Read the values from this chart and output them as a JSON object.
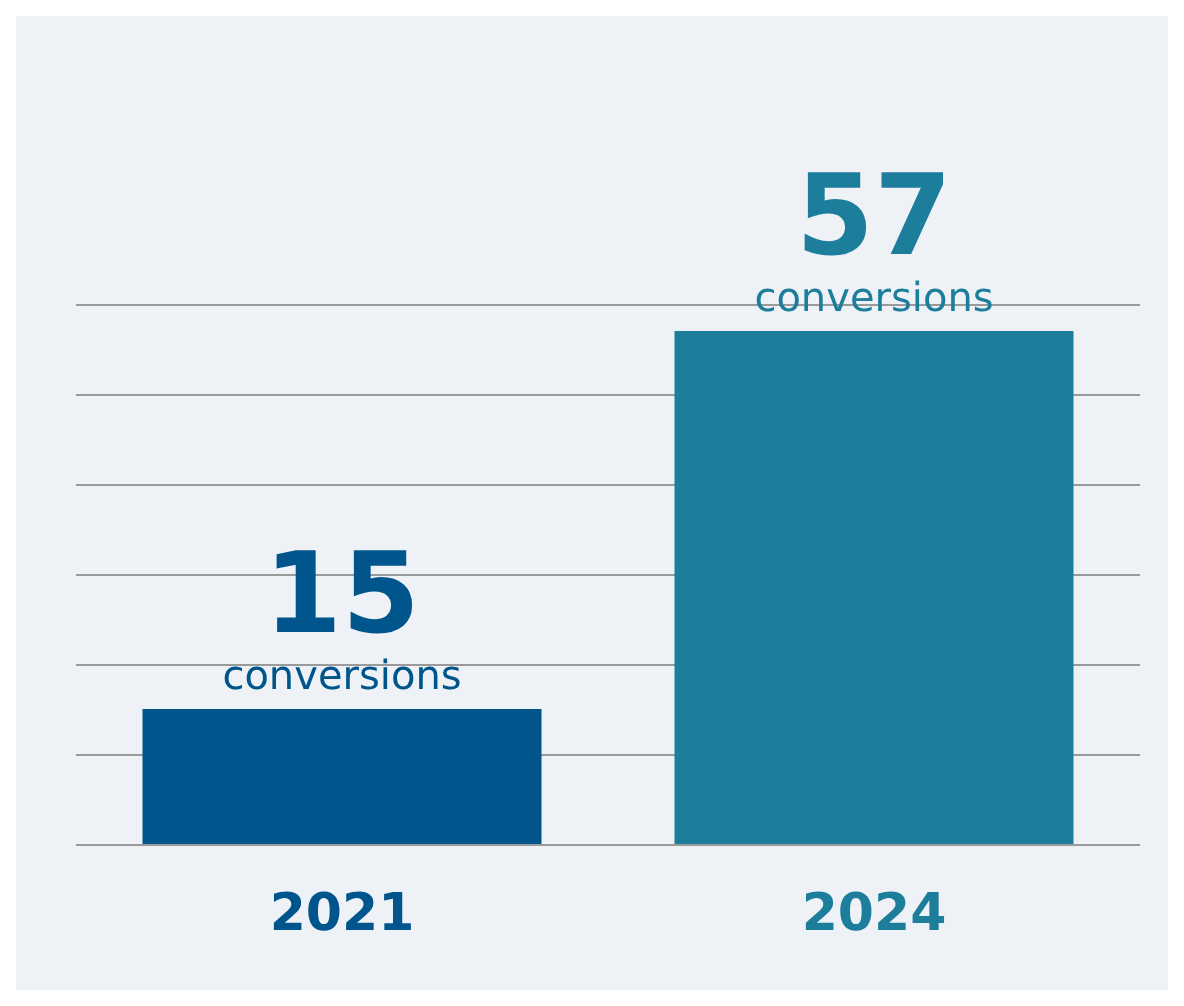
{
  "chart_data": {
    "type": "bar",
    "categories": [
      "2021",
      "2024"
    ],
    "values": [
      15,
      57
    ],
    "colors": [
      "#00558c",
      "#1d7e9c"
    ],
    "value_labels": [
      "15 conversions",
      "57 conversions"
    ],
    "ylim": [
      0,
      60
    ],
    "yticks": [
      0,
      10,
      20,
      30,
      40,
      50,
      60
    ],
    "grid": "y",
    "tick_labels": "x"
  }
}
